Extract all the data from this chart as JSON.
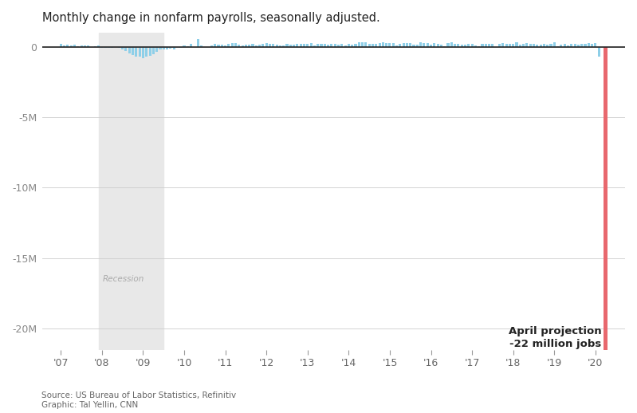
{
  "title": "Monthly change in nonfarm payrolls, seasonally adjusted.",
  "title_fontsize": 10.5,
  "ylabel_ticks": [
    0,
    -5000000,
    -10000000,
    -15000000,
    -20000000
  ],
  "ylabel_labels": [
    "0",
    "-5M",
    "-10M",
    "-15M",
    "-20M"
  ],
  "ylim": [
    -21500000,
    1000000
  ],
  "x_tick_labels": [
    "'07",
    "'08",
    "'09",
    "'10",
    "'11",
    "'12",
    "'13",
    "'14",
    "'15",
    "'16",
    "'17",
    "'18",
    "'19",
    "'20"
  ],
  "x_tick_positions": [
    2007,
    2008,
    2009,
    2010,
    2011,
    2012,
    2013,
    2014,
    2015,
    2016,
    2017,
    2018,
    2019,
    2020
  ],
  "recession_start": 2007.917,
  "recession_end": 2009.5,
  "recession_label": "Recession",
  "bar_color": "#8ecfe8",
  "bar_color_april": "#e8686e",
  "annotation_line1": "April projection",
  "annotation_line2": "-22 million jobs",
  "source_text": "Source: US Bureau of Labor Statistics, Refinitiv\nGraphic: Tal Yellin, CNN",
  "background_color": "#ffffff",
  "grid_color": "#cccccc",
  "xlim_left": 2006.55,
  "xlim_right": 2020.72,
  "monthly_data": [
    {
      "date": 2007.0,
      "value": 180000
    },
    {
      "date": 2007.083,
      "value": 100000
    },
    {
      "date": 2007.167,
      "value": 160000
    },
    {
      "date": 2007.25,
      "value": 90000
    },
    {
      "date": 2007.333,
      "value": 150000
    },
    {
      "date": 2007.417,
      "value": 60000
    },
    {
      "date": 2007.5,
      "value": 80000
    },
    {
      "date": 2007.583,
      "value": 100000
    },
    {
      "date": 2007.667,
      "value": 110000
    },
    {
      "date": 2007.75,
      "value": -30000
    },
    {
      "date": 2007.833,
      "value": 60000
    },
    {
      "date": 2007.917,
      "value": 80000
    },
    {
      "date": 2008.0,
      "value": -80000
    },
    {
      "date": 2008.083,
      "value": -100000
    },
    {
      "date": 2008.167,
      "value": -80000
    },
    {
      "date": 2008.25,
      "value": -100000
    },
    {
      "date": 2008.333,
      "value": -50000
    },
    {
      "date": 2008.417,
      "value": -100000
    },
    {
      "date": 2008.5,
      "value": -220000
    },
    {
      "date": 2008.583,
      "value": -280000
    },
    {
      "date": 2008.667,
      "value": -450000
    },
    {
      "date": 2008.75,
      "value": -600000
    },
    {
      "date": 2008.833,
      "value": -700000
    },
    {
      "date": 2008.917,
      "value": -680000
    },
    {
      "date": 2009.0,
      "value": -820000
    },
    {
      "date": 2009.083,
      "value": -700000
    },
    {
      "date": 2009.167,
      "value": -650000
    },
    {
      "date": 2009.25,
      "value": -540000
    },
    {
      "date": 2009.333,
      "value": -350000
    },
    {
      "date": 2009.417,
      "value": -220000
    },
    {
      "date": 2009.5,
      "value": -190000
    },
    {
      "date": 2009.583,
      "value": -180000
    },
    {
      "date": 2009.667,
      "value": -150000
    },
    {
      "date": 2009.75,
      "value": -180000
    },
    {
      "date": 2009.833,
      "value": -10000
    },
    {
      "date": 2009.917,
      "value": -60000
    },
    {
      "date": 2010.0,
      "value": 80000
    },
    {
      "date": 2010.083,
      "value": 40000
    },
    {
      "date": 2010.167,
      "value": 200000
    },
    {
      "date": 2010.25,
      "value": -30000
    },
    {
      "date": 2010.333,
      "value": 520000
    },
    {
      "date": 2010.417,
      "value": 100000
    },
    {
      "date": 2010.5,
      "value": -20000
    },
    {
      "date": 2010.583,
      "value": -50000
    },
    {
      "date": 2010.667,
      "value": 70000
    },
    {
      "date": 2010.75,
      "value": 200000
    },
    {
      "date": 2010.833,
      "value": 120000
    },
    {
      "date": 2010.917,
      "value": 130000
    },
    {
      "date": 2011.0,
      "value": 80000
    },
    {
      "date": 2011.083,
      "value": 220000
    },
    {
      "date": 2011.167,
      "value": 240000
    },
    {
      "date": 2011.25,
      "value": 260000
    },
    {
      "date": 2011.333,
      "value": 170000
    },
    {
      "date": 2011.417,
      "value": 90000
    },
    {
      "date": 2011.5,
      "value": 130000
    },
    {
      "date": 2011.583,
      "value": 160000
    },
    {
      "date": 2011.667,
      "value": 200000
    },
    {
      "date": 2011.75,
      "value": 110000
    },
    {
      "date": 2011.833,
      "value": 160000
    },
    {
      "date": 2011.917,
      "value": 210000
    },
    {
      "date": 2012.0,
      "value": 280000
    },
    {
      "date": 2012.083,
      "value": 230000
    },
    {
      "date": 2012.167,
      "value": 230000
    },
    {
      "date": 2012.25,
      "value": 120000
    },
    {
      "date": 2012.333,
      "value": 100000
    },
    {
      "date": 2012.417,
      "value": 90000
    },
    {
      "date": 2012.5,
      "value": 200000
    },
    {
      "date": 2012.583,
      "value": 160000
    },
    {
      "date": 2012.667,
      "value": 130000
    },
    {
      "date": 2012.75,
      "value": 180000
    },
    {
      "date": 2012.833,
      "value": 200000
    },
    {
      "date": 2012.917,
      "value": 180000
    },
    {
      "date": 2013.0,
      "value": 200000
    },
    {
      "date": 2013.083,
      "value": 260000
    },
    {
      "date": 2013.167,
      "value": 90000
    },
    {
      "date": 2013.25,
      "value": 180000
    },
    {
      "date": 2013.333,
      "value": 200000
    },
    {
      "date": 2013.417,
      "value": 200000
    },
    {
      "date": 2013.5,
      "value": 150000
    },
    {
      "date": 2013.583,
      "value": 220000
    },
    {
      "date": 2013.667,
      "value": 200000
    },
    {
      "date": 2013.75,
      "value": 160000
    },
    {
      "date": 2013.833,
      "value": 220000
    },
    {
      "date": 2013.917,
      "value": 80000
    },
    {
      "date": 2014.0,
      "value": 180000
    },
    {
      "date": 2014.083,
      "value": 160000
    },
    {
      "date": 2014.167,
      "value": 200000
    },
    {
      "date": 2014.25,
      "value": 290000
    },
    {
      "date": 2014.333,
      "value": 300000
    },
    {
      "date": 2014.417,
      "value": 290000
    },
    {
      "date": 2014.5,
      "value": 230000
    },
    {
      "date": 2014.583,
      "value": 190000
    },
    {
      "date": 2014.667,
      "value": 180000
    },
    {
      "date": 2014.75,
      "value": 280000
    },
    {
      "date": 2014.833,
      "value": 320000
    },
    {
      "date": 2014.917,
      "value": 260000
    },
    {
      "date": 2015.0,
      "value": 280000
    },
    {
      "date": 2015.083,
      "value": 270000
    },
    {
      "date": 2015.167,
      "value": 90000
    },
    {
      "date": 2015.25,
      "value": 220000
    },
    {
      "date": 2015.333,
      "value": 260000
    },
    {
      "date": 2015.417,
      "value": 250000
    },
    {
      "date": 2015.5,
      "value": 260000
    },
    {
      "date": 2015.583,
      "value": 170000
    },
    {
      "date": 2015.667,
      "value": 150000
    },
    {
      "date": 2015.75,
      "value": 290000
    },
    {
      "date": 2015.833,
      "value": 280000
    },
    {
      "date": 2015.917,
      "value": 260000
    },
    {
      "date": 2016.0,
      "value": 150000
    },
    {
      "date": 2016.083,
      "value": 240000
    },
    {
      "date": 2016.167,
      "value": 230000
    },
    {
      "date": 2016.25,
      "value": 140000
    },
    {
      "date": 2016.333,
      "value": 45000
    },
    {
      "date": 2016.417,
      "value": 270000
    },
    {
      "date": 2016.5,
      "value": 290000
    },
    {
      "date": 2016.583,
      "value": 180000
    },
    {
      "date": 2016.667,
      "value": 200000
    },
    {
      "date": 2016.75,
      "value": 135000
    },
    {
      "date": 2016.833,
      "value": 150000
    },
    {
      "date": 2016.917,
      "value": 200000
    },
    {
      "date": 2017.0,
      "value": 220000
    },
    {
      "date": 2017.083,
      "value": 70000
    },
    {
      "date": 2017.167,
      "value": 50000
    },
    {
      "date": 2017.25,
      "value": 180000
    },
    {
      "date": 2017.333,
      "value": 180000
    },
    {
      "date": 2017.417,
      "value": 180000
    },
    {
      "date": 2017.5,
      "value": 200000
    },
    {
      "date": 2017.583,
      "value": -30000
    },
    {
      "date": 2017.667,
      "value": 200000
    },
    {
      "date": 2017.75,
      "value": 260000
    },
    {
      "date": 2017.833,
      "value": 220000
    },
    {
      "date": 2017.917,
      "value": 200000
    },
    {
      "date": 2018.0,
      "value": 230000
    },
    {
      "date": 2018.083,
      "value": 320000
    },
    {
      "date": 2018.167,
      "value": 170000
    },
    {
      "date": 2018.25,
      "value": 180000
    },
    {
      "date": 2018.333,
      "value": 260000
    },
    {
      "date": 2018.417,
      "value": 220000
    },
    {
      "date": 2018.5,
      "value": 200000
    },
    {
      "date": 2018.583,
      "value": 160000
    },
    {
      "date": 2018.667,
      "value": 120000
    },
    {
      "date": 2018.75,
      "value": 230000
    },
    {
      "date": 2018.833,
      "value": 170000
    },
    {
      "date": 2018.917,
      "value": 200000
    },
    {
      "date": 2019.0,
      "value": 300000
    },
    {
      "date": 2019.083,
      "value": 58000
    },
    {
      "date": 2019.167,
      "value": 170000
    },
    {
      "date": 2019.25,
      "value": 230000
    },
    {
      "date": 2019.333,
      "value": 80000
    },
    {
      "date": 2019.417,
      "value": 180000
    },
    {
      "date": 2019.5,
      "value": 180000
    },
    {
      "date": 2019.583,
      "value": 170000
    },
    {
      "date": 2019.667,
      "value": 180000
    },
    {
      "date": 2019.75,
      "value": 190000
    },
    {
      "date": 2019.833,
      "value": 280000
    },
    {
      "date": 2019.917,
      "value": 184000
    },
    {
      "date": 2020.0,
      "value": 250000
    },
    {
      "date": 2020.083,
      "value": -701000
    },
    {
      "date": 2020.25,
      "value": -22000000
    }
  ]
}
